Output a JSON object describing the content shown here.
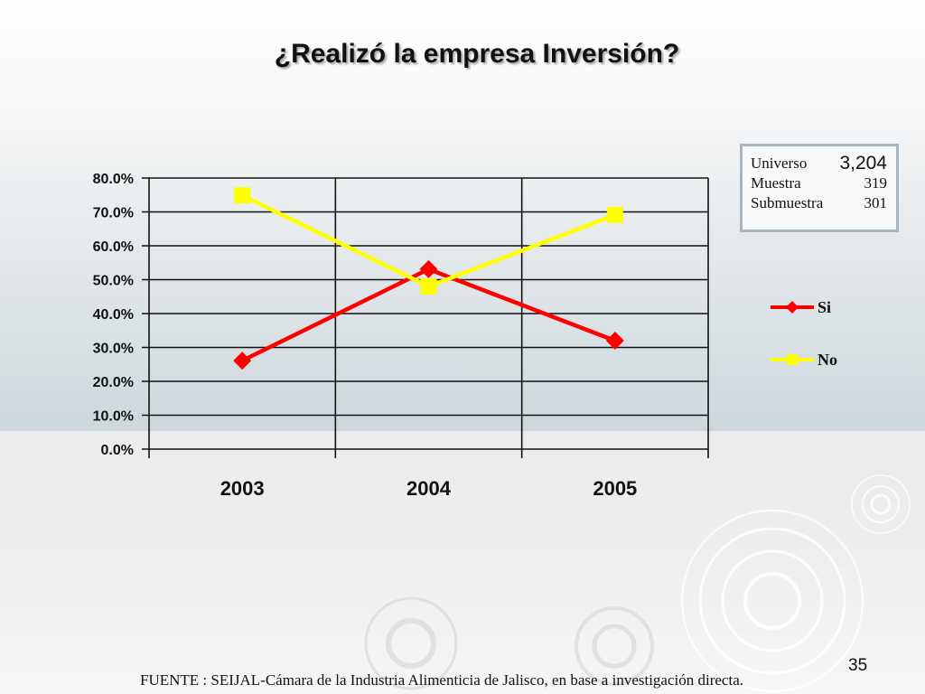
{
  "slide": {
    "title": "¿Realizó la empresa Inversión?",
    "page_number": "35",
    "source": "FUENTE : SEIJAL-Cámara de la Industria Alimenticia de Jalisco,  en base a investigación directa."
  },
  "info_box": {
    "rows": [
      {
        "label": "Universo",
        "value": "3,204"
      },
      {
        "label": "Muestra",
        "value": "319"
      },
      {
        "label": "Submuestra",
        "value": "301"
      }
    ]
  },
  "chart_data": {
    "type": "line",
    "title": "¿Realizó la empresa Inversión?",
    "xlabel": "",
    "ylabel": "",
    "categories": [
      "2003",
      "2004",
      "2005"
    ],
    "ylim": [
      0,
      80
    ],
    "yticks": [
      0,
      10,
      20,
      30,
      40,
      50,
      60,
      70,
      80
    ],
    "ytick_labels": [
      "0.0%",
      "10.0%",
      "20.0%",
      "30.0%",
      "40.0%",
      "50.0%",
      "60.0%",
      "70.0%",
      "80.0%"
    ],
    "grid": true,
    "legend_position": "right",
    "series": [
      {
        "name": "Si",
        "values": [
          26.1,
          53.1,
          32.0
        ],
        "color": "#ff0000",
        "marker": "diamond"
      },
      {
        "name": "No",
        "values": [
          74.9,
          48.0,
          69.1
        ],
        "color": "#ffff00",
        "marker": "square"
      }
    ]
  }
}
